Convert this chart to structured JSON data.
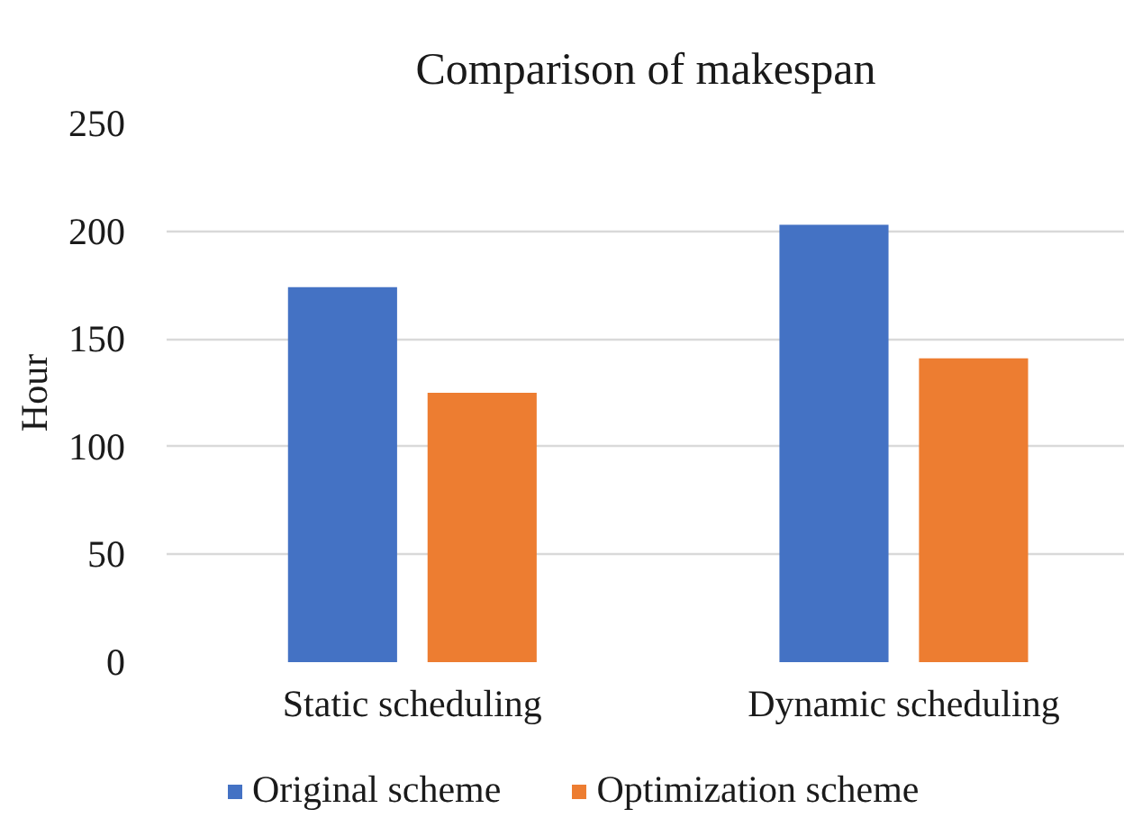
{
  "chart_data": {
    "type": "bar",
    "title": "Comparison of makespan",
    "ylabel": "Hour",
    "categories": [
      "Static scheduling",
      "Dynamic scheduling"
    ],
    "series": [
      {
        "name": "Original scheme",
        "color": "#4472c4",
        "values": [
          174,
          203
        ]
      },
      {
        "name": "Optimization scheme",
        "color": "#ed7d31",
        "values": [
          125,
          141
        ]
      }
    ],
    "ylim": [
      0,
      250
    ],
    "yticks": [
      0,
      50,
      100,
      150,
      200,
      250
    ],
    "grid": "y",
    "legend": "bottom"
  }
}
